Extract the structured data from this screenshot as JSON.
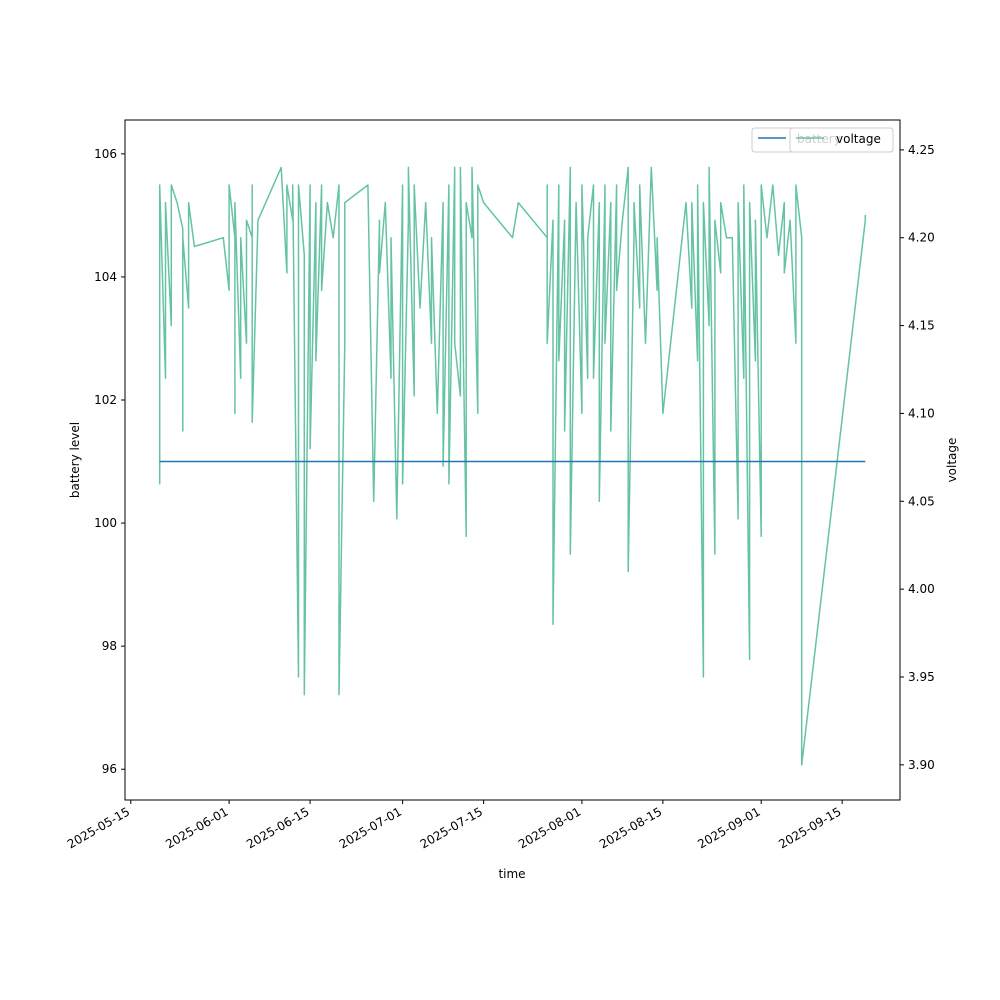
{
  "chart_data": {
    "type": "line",
    "xlabel": "time",
    "ylabel_left": "battery level",
    "ylabel_right": "voltage",
    "x_ticks": [
      "2025-05-15",
      "2025-06-01",
      "2025-06-15",
      "2025-07-01",
      "2025-07-15",
      "2025-08-01",
      "2025-08-15",
      "2025-09-01",
      "2025-09-15"
    ],
    "y_left_ticks": [
      "96",
      "98",
      "100",
      "102",
      "104",
      "106"
    ],
    "y_right_ticks": [
      "3.90",
      "3.95",
      "4.00",
      "4.05",
      "4.10",
      "4.15",
      "4.20",
      "4.25"
    ],
    "x_range": [
      "2025-05-14",
      "2025-09-25"
    ],
    "y_left_range": [
      95.5,
      106.55
    ],
    "y_right_range": [
      3.88,
      4.267
    ],
    "grid": false,
    "legends": [
      {
        "label": "battery",
        "placement": "upper-right",
        "color": "#1f77b4"
      },
      {
        "label": "voltage",
        "placement": "upper-right",
        "color": "#66c2a5"
      }
    ],
    "series": [
      {
        "name": "battery",
        "axis": "left",
        "color": "#1f77b4",
        "points": [
          [
            "2025-05-20",
            101
          ],
          [
            "2025-09-19",
            101
          ]
        ]
      },
      {
        "name": "voltage",
        "axis": "right",
        "color": "#66c2a5",
        "points": [
          [
            "2025-05-20",
            4.14
          ],
          [
            "2025-05-20",
            4.06
          ],
          [
            "2025-05-20",
            4.23
          ],
          [
            "2025-05-21",
            4.12
          ],
          [
            "2025-05-21",
            4.22
          ],
          [
            "2025-05-22",
            4.15
          ],
          [
            "2025-05-22",
            4.23
          ],
          [
            "2025-05-23",
            4.22
          ],
          [
            "2025-05-24",
            4.205
          ],
          [
            "2025-05-24",
            4.09
          ],
          [
            "2025-05-24",
            4.2
          ],
          [
            "2025-05-25",
            4.16
          ],
          [
            "2025-05-25",
            4.22
          ],
          [
            "2025-05-26",
            4.195
          ],
          [
            "2025-05-31",
            4.2
          ],
          [
            "2025-06-01",
            4.17
          ],
          [
            "2025-06-01",
            4.23
          ],
          [
            "2025-06-02",
            4.2
          ],
          [
            "2025-06-02",
            4.1
          ],
          [
            "2025-06-02",
            4.22
          ],
          [
            "2025-06-03",
            4.12
          ],
          [
            "2025-06-03",
            4.2
          ],
          [
            "2025-06-04",
            4.14
          ],
          [
            "2025-06-04",
            4.21
          ],
          [
            "2025-06-05",
            4.2
          ],
          [
            "2025-06-05",
            4.23
          ],
          [
            "2025-06-05",
            4.095
          ],
          [
            "2025-06-06",
            4.21
          ],
          [
            "2025-06-10",
            4.24
          ],
          [
            "2025-06-11",
            4.18
          ],
          [
            "2025-06-11",
            4.23
          ],
          [
            "2025-06-12",
            4.21
          ],
          [
            "2025-06-12",
            4.23
          ],
          [
            "2025-06-13",
            3.95
          ],
          [
            "2025-06-13",
            4.23
          ],
          [
            "2025-06-14",
            4.19
          ],
          [
            "2025-06-14",
            3.94
          ],
          [
            "2025-06-15",
            4.23
          ],
          [
            "2025-06-15",
            4.08
          ],
          [
            "2025-06-16",
            4.22
          ],
          [
            "2025-06-16",
            4.13
          ],
          [
            "2025-06-17",
            4.23
          ],
          [
            "2025-06-17",
            4.17
          ],
          [
            "2025-06-18",
            4.22
          ],
          [
            "2025-06-19",
            4.2
          ],
          [
            "2025-06-20",
            4.23
          ],
          [
            "2025-06-20",
            4.19
          ],
          [
            "2025-06-20",
            3.94
          ],
          [
            "2025-06-21",
            4.14
          ],
          [
            "2025-06-21",
            4.22
          ],
          [
            "2025-06-25",
            4.23
          ],
          [
            "2025-06-26",
            4.05
          ],
          [
            "2025-06-27",
            4.21
          ],
          [
            "2025-06-27",
            4.18
          ],
          [
            "2025-06-28",
            4.22
          ],
          [
            "2025-06-29",
            4.12
          ],
          [
            "2025-06-29",
            4.2
          ],
          [
            "2025-06-30",
            4.04
          ],
          [
            "2025-07-01",
            4.23
          ],
          [
            "2025-07-01",
            4.06
          ],
          [
            "2025-07-02",
            4.21
          ],
          [
            "2025-07-02",
            4.24
          ],
          [
            "2025-07-03",
            4.11
          ],
          [
            "2025-07-03",
            4.23
          ],
          [
            "2025-07-04",
            4.16
          ],
          [
            "2025-07-05",
            4.22
          ],
          [
            "2025-07-06",
            4.14
          ],
          [
            "2025-07-06",
            4.2
          ],
          [
            "2025-07-07",
            4.1
          ],
          [
            "2025-07-08",
            4.22
          ],
          [
            "2025-07-08",
            4.07
          ],
          [
            "2025-07-09",
            4.23
          ],
          [
            "2025-07-09",
            4.06
          ],
          [
            "2025-07-10",
            4.24
          ],
          [
            "2025-07-10",
            4.14
          ],
          [
            "2025-07-11",
            4.11
          ],
          [
            "2025-07-11",
            4.24
          ],
          [
            "2025-07-12",
            4.03
          ],
          [
            "2025-07-12",
            4.22
          ],
          [
            "2025-07-13",
            4.2
          ],
          [
            "2025-07-13",
            4.24
          ],
          [
            "2025-07-14",
            4.1
          ],
          [
            "2025-07-14",
            4.23
          ],
          [
            "2025-07-15",
            4.22
          ],
          [
            "2025-07-20",
            4.2
          ],
          [
            "2025-07-21",
            4.22
          ],
          [
            "2025-07-26",
            4.2
          ],
          [
            "2025-07-26",
            4.23
          ],
          [
            "2025-07-26",
            4.14
          ],
          [
            "2025-07-27",
            4.21
          ],
          [
            "2025-07-27",
            3.98
          ],
          [
            "2025-07-28",
            4.23
          ],
          [
            "2025-07-28",
            4.13
          ],
          [
            "2025-07-29",
            4.21
          ],
          [
            "2025-07-29",
            4.09
          ],
          [
            "2025-07-30",
            4.24
          ],
          [
            "2025-07-30",
            4.02
          ],
          [
            "2025-07-31",
            4.22
          ],
          [
            "2025-08-01",
            4.1
          ],
          [
            "2025-08-01",
            4.23
          ],
          [
            "2025-08-02",
            4.12
          ],
          [
            "2025-08-02",
            4.2
          ],
          [
            "2025-08-03",
            4.23
          ],
          [
            "2025-08-03",
            4.12
          ],
          [
            "2025-08-04",
            4.22
          ],
          [
            "2025-08-04",
            4.05
          ],
          [
            "2025-08-05",
            4.23
          ],
          [
            "2025-08-05",
            4.14
          ],
          [
            "2025-08-06",
            4.22
          ],
          [
            "2025-08-06",
            4.09
          ],
          [
            "2025-08-07",
            4.23
          ],
          [
            "2025-08-07",
            4.17
          ],
          [
            "2025-08-08",
            4.21
          ],
          [
            "2025-08-09",
            4.24
          ],
          [
            "2025-08-09",
            4.01
          ],
          [
            "2025-08-10",
            4.2
          ],
          [
            "2025-08-10",
            4.22
          ],
          [
            "2025-08-11",
            4.16
          ],
          [
            "2025-08-11",
            4.23
          ],
          [
            "2025-08-12",
            4.14
          ],
          [
            "2025-08-13",
            4.24
          ],
          [
            "2025-08-14",
            4.17
          ],
          [
            "2025-08-14",
            4.2
          ],
          [
            "2025-08-15",
            4.1
          ],
          [
            "2025-08-19",
            4.22
          ],
          [
            "2025-08-20",
            4.16
          ],
          [
            "2025-08-20",
            4.22
          ],
          [
            "2025-08-21",
            4.13
          ],
          [
            "2025-08-21",
            4.23
          ],
          [
            "2025-08-22",
            3.95
          ],
          [
            "2025-08-22",
            4.22
          ],
          [
            "2025-08-23",
            4.15
          ],
          [
            "2025-08-23",
            4.24
          ],
          [
            "2025-08-24",
            4.02
          ],
          [
            "2025-08-24",
            4.21
          ],
          [
            "2025-08-25",
            4.18
          ],
          [
            "2025-08-25",
            4.22
          ],
          [
            "2025-08-26",
            4.2
          ],
          [
            "2025-08-27",
            4.2
          ],
          [
            "2025-08-28",
            4.04
          ],
          [
            "2025-08-28",
            4.22
          ],
          [
            "2025-08-29",
            4.12
          ],
          [
            "2025-08-29",
            4.23
          ],
          [
            "2025-08-30",
            3.96
          ],
          [
            "2025-08-30",
            4.22
          ],
          [
            "2025-08-31",
            4.13
          ],
          [
            "2025-08-31",
            4.21
          ],
          [
            "2025-09-01",
            4.03
          ],
          [
            "2025-09-01",
            4.23
          ],
          [
            "2025-09-02",
            4.2
          ],
          [
            "2025-09-03",
            4.23
          ],
          [
            "2025-09-04",
            4.19
          ],
          [
            "2025-09-05",
            4.22
          ],
          [
            "2025-09-05",
            4.18
          ],
          [
            "2025-09-06",
            4.21
          ],
          [
            "2025-09-07",
            4.14
          ],
          [
            "2025-09-07",
            4.23
          ],
          [
            "2025-09-08",
            4.2
          ],
          [
            "2025-09-08",
            3.9
          ],
          [
            "2025-09-19",
            4.21
          ],
          [
            "2025-09-19",
            4.213
          ]
        ]
      }
    ]
  }
}
